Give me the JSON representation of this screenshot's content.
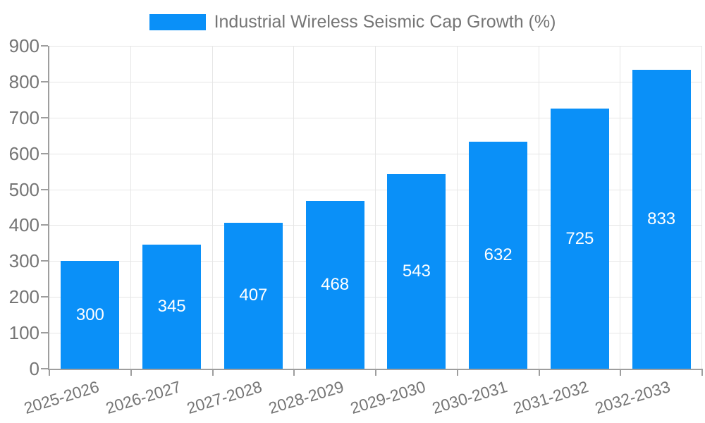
{
  "chart_data": {
    "type": "bar",
    "title": "",
    "legend": {
      "label": "Industrial Wireless Seismic Cap Growth (%)",
      "position": "top-center"
    },
    "categories": [
      "2025-2026",
      "2026-2027",
      "2027-2028",
      "2028-2029",
      "2029-2030",
      "2030-2031",
      "2031-2032",
      "2032-2033"
    ],
    "values": [
      300,
      345,
      407,
      468,
      543,
      632,
      725,
      833
    ],
    "value_labels_shown": true,
    "xlabel": "",
    "ylabel": "",
    "ylim": [
      0,
      900
    ],
    "yticks": [
      0,
      100,
      200,
      300,
      400,
      500,
      600,
      700,
      800,
      900
    ],
    "grid": true,
    "colors": {
      "bar": "#0a90f8",
      "grid": "#e6e6e6",
      "axis": "#9e9e9e",
      "text": "#757575",
      "value_label": "#ffffff",
      "background": "#ffffff"
    }
  }
}
